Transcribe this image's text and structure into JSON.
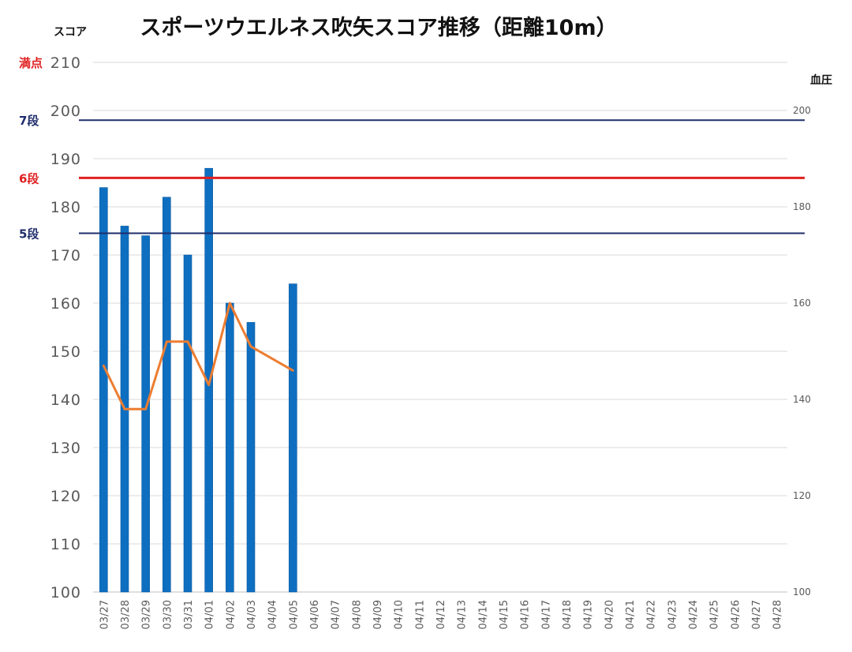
{
  "chart_data": {
    "type": "bar",
    "title": "スポーツウエルネス吹矢スコア推移（距離10m）",
    "ylabel": "スコア",
    "y2label": "血圧",
    "ylim": [
      100,
      210
    ],
    "y2lim": [
      100,
      210
    ],
    "yticks": [
      100,
      110,
      120,
      130,
      140,
      150,
      160,
      170,
      180,
      190,
      200,
      210
    ],
    "y2ticks": [
      100,
      120,
      140,
      160,
      180,
      200
    ],
    "grid": true,
    "categories": [
      "03/27",
      "03/28",
      "03/29",
      "03/30",
      "03/31",
      "04/01",
      "04/02",
      "04/03",
      "04/04",
      "04/05",
      "04/06",
      "04/07",
      "04/08",
      "04/09",
      "04/10",
      "04/11",
      "04/12",
      "04/13",
      "04/14",
      "04/15",
      "04/16",
      "04/17",
      "04/18",
      "04/19",
      "04/20",
      "04/21",
      "04/22",
      "04/23",
      "04/24",
      "04/25",
      "04/26",
      "04/27",
      "04/28"
    ],
    "series": [
      {
        "type": "bar",
        "axis": "left",
        "color": "#0e6fc1",
        "values": [
          184,
          176,
          174,
          182,
          170,
          188,
          160,
          156,
          null,
          164,
          null,
          null,
          null,
          null,
          null,
          null,
          null,
          null,
          null,
          null,
          null,
          null,
          null,
          null,
          null,
          null,
          null,
          null,
          null,
          null,
          null,
          null,
          null
        ]
      },
      {
        "type": "line",
        "axis": "right",
        "color": "#ed7d31",
        "values": [
          147,
          138,
          138,
          152,
          152,
          143,
          160,
          151,
          null,
          146,
          null,
          null,
          null,
          null,
          null,
          null,
          null,
          null,
          null,
          null,
          null,
          null,
          null,
          null,
          null,
          null,
          null,
          null,
          null,
          null,
          null,
          null,
          null
        ]
      }
    ],
    "reference_lines": [
      {
        "label": "満点",
        "value": 210,
        "color": "#e02020",
        "drawn": false
      },
      {
        "label": "7段",
        "value": 198,
        "color": "#1f2d6b",
        "drawn": true
      },
      {
        "label": "6段",
        "value": 186,
        "color": "#e02020",
        "drawn": true
      },
      {
        "label": "5段",
        "value": 174.5,
        "color": "#1f2d6b",
        "drawn": true
      }
    ]
  }
}
